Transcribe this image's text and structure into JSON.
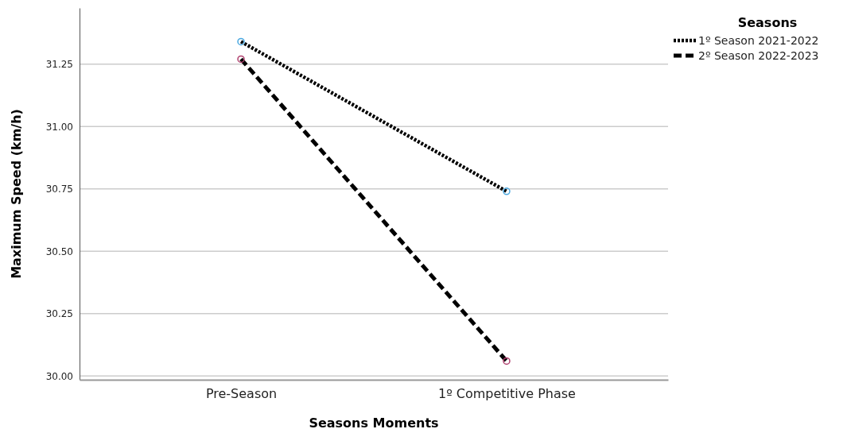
{
  "chart_data": {
    "type": "line",
    "xlabel": "Seasons Moments",
    "ylabel": "Maximum Speed  (km/h)",
    "legend_title": "Seasons",
    "categories": [
      "Pre-Season",
      "1º Competitive Phase"
    ],
    "series": [
      {
        "name": "1º Season 2021-2022",
        "color": "#000000",
        "colors": [
          "#4aa8e0",
          "#4aa8e0"
        ],
        "line_style": "dotted",
        "values": [
          31.34,
          30.74
        ]
      },
      {
        "name": "2º Season 2022-2023",
        "color": "#000000",
        "colors": [
          "#b0406e",
          "#b0406e"
        ],
        "line_style": "dashed",
        "values": [
          31.27,
          30.06
        ]
      }
    ],
    "ylim": [
      29.985,
      31.475
    ],
    "yticks": [
      {
        "value": 30,
        "label": "30.00"
      },
      {
        "value": 30.25,
        "label": "30.25"
      },
      {
        "value": 30.5,
        "label": "30.50"
      },
      {
        "value": 30.75,
        "label": "30.75"
      },
      {
        "value": 31,
        "label": "31.00"
      },
      {
        "value": 31.25,
        "label": "31.25"
      }
    ],
    "grid": "y",
    "legend": "top right",
    "marker": "circle"
  }
}
